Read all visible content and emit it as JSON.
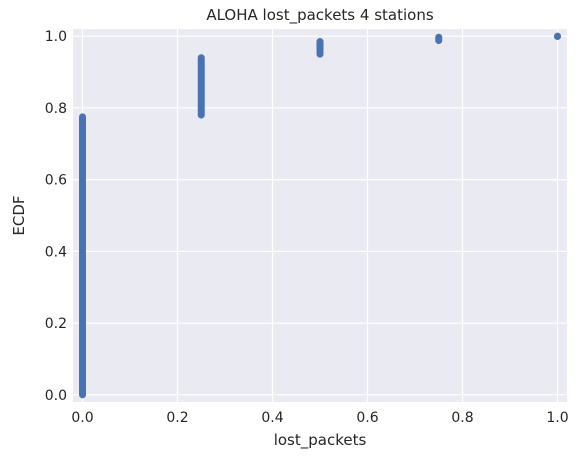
{
  "chart_data": {
    "type": "scatter",
    "title": "ALOHA lost_packets 4 stations",
    "xlabel": "lost_packets",
    "ylabel": "ECDF",
    "xlim": [
      -0.02,
      1.02
    ],
    "ylim": [
      -0.02,
      1.02
    ],
    "xticks": [
      0.0,
      0.2,
      0.4,
      0.6,
      0.8,
      1.0
    ],
    "xtick_labels": [
      "0.0",
      "0.2",
      "0.4",
      "0.6",
      "0.8",
      "1.0"
    ],
    "yticks": [
      0.0,
      0.2,
      0.4,
      0.6,
      0.8,
      1.0
    ],
    "ytick_labels": [
      "0.0",
      "0.2",
      "0.4",
      "0.6",
      "0.8",
      "1.0"
    ],
    "grid": true,
    "background_color": "#eaeaf2",
    "point_color": "#4c72b0",
    "segments": [
      {
        "x": 0.0,
        "y_start": 0.0,
        "y_end": 0.775
      },
      {
        "x": 0.25,
        "y_start": 0.78,
        "y_end": 0.94
      },
      {
        "x": 0.5,
        "y_start": 0.95,
        "y_end": 0.985
      },
      {
        "x": 0.75,
        "y_start": 0.988,
        "y_end": 0.997
      },
      {
        "x": 1.0,
        "y_start": 0.999,
        "y_end": 1.0
      }
    ]
  }
}
